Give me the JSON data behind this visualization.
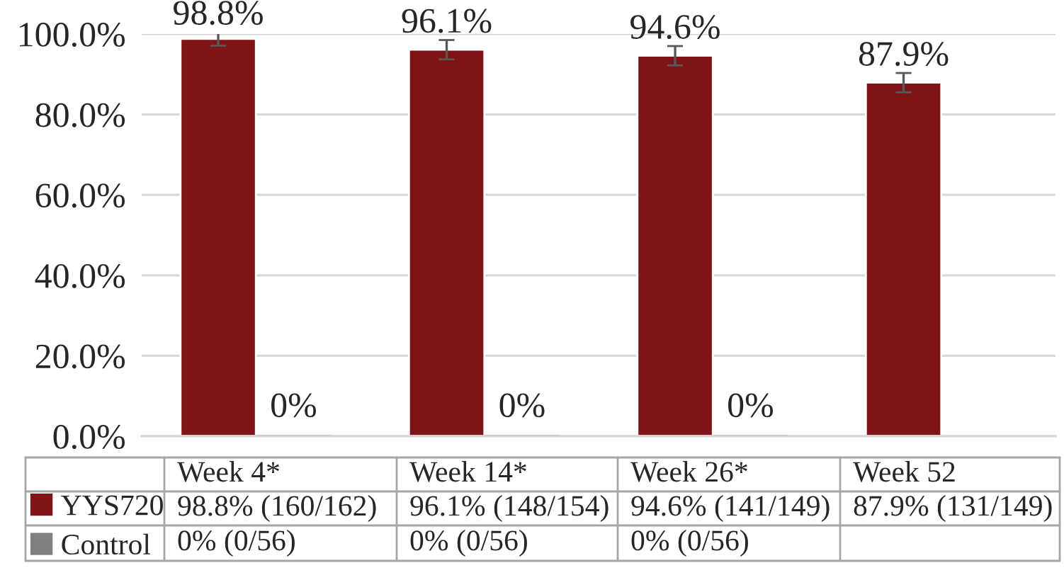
{
  "chart_data": {
    "type": "bar",
    "categories": [
      "Week 4*",
      "Week 14*",
      "Week 26*",
      "Week 52"
    ],
    "series": [
      {
        "name": "YYS720",
        "color": "#7f1416",
        "values": [
          98.8,
          96.1,
          94.6,
          87.9
        ],
        "errors": [
          1.7,
          2.4,
          2.4,
          2.4
        ],
        "value_labels": [
          "98.8% (160/162)",
          "96.1% (148/154)",
          "94.6% (141/149)",
          "87.9% (131/149)"
        ]
      },
      {
        "name": "Control",
        "color": "#808080",
        "values": [
          0,
          0,
          0,
          null
        ],
        "value_labels": [
          "0% (0/56)",
          "0% (0/56)",
          "0% (0/56)",
          null
        ]
      }
    ],
    "ylim": [
      0,
      100
    ],
    "yticks": [
      {
        "value": 0,
        "label": "0.0%"
      },
      {
        "value": 20,
        "label": "20.0%"
      },
      {
        "value": 40,
        "label": "40.0%"
      },
      {
        "value": 60,
        "label": "60.0%"
      },
      {
        "value": 80,
        "label": "80.0%"
      },
      {
        "value": 100,
        "label": "100.0%"
      }
    ],
    "grid": "y",
    "legend": "bottom",
    "annotations": [
      {
        "text": "98.8%",
        "x": "Week 4*",
        "y": 98.8
      },
      {
        "text": "96.1%",
        "x": "Week 14*",
        "y": 96.1
      },
      {
        "text": "94.6%",
        "x": "Week 26*",
        "y": 94.6
      },
      {
        "text": "87.9%",
        "x": "Week 52",
        "y": 87.9
      },
      {
        "text": "0%",
        "x": "Week 4*",
        "y": 0
      },
      {
        "text": "0%",
        "x": "Week 14*",
        "y": 0
      },
      {
        "text": "0%",
        "x": "Week 26*",
        "y": 0
      }
    ]
  }
}
